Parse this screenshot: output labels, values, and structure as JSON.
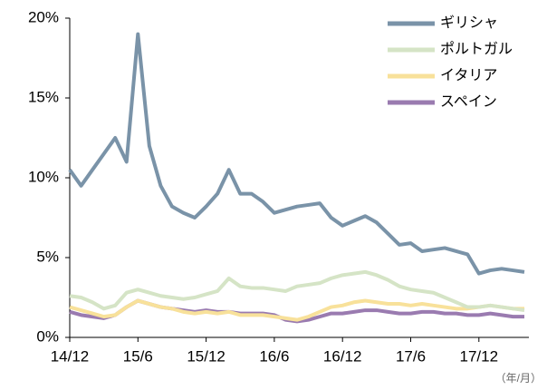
{
  "chart_data": {
    "type": "line",
    "categories": [
      "14/12",
      null,
      null,
      null,
      null,
      null,
      "15/6",
      null,
      null,
      null,
      null,
      null,
      "15/12",
      null,
      null,
      null,
      null,
      null,
      "16/6",
      null,
      null,
      null,
      null,
      null,
      "16/12",
      null,
      null,
      null,
      null,
      null,
      "17/6",
      null,
      null,
      null,
      null,
      null,
      "17/12",
      null,
      null,
      null,
      null
    ],
    "series": [
      {
        "name": "ギリシャ",
        "color": "#7a93a8",
        "values": [
          10.5,
          9.5,
          10.5,
          11.5,
          12.5,
          11.0,
          19.0,
          12.0,
          9.5,
          8.2,
          7.8,
          7.5,
          8.2,
          9.0,
          10.5,
          9.0,
          9.0,
          8.5,
          7.8,
          8.0,
          8.2,
          8.3,
          8.4,
          7.5,
          7.0,
          7.3,
          7.6,
          7.2,
          6.5,
          5.8,
          5.9,
          5.4,
          5.5,
          5.6,
          5.4,
          5.2,
          4.0,
          4.2,
          4.3,
          4.2,
          4.1
        ]
      },
      {
        "name": "ポルトガル",
        "color": "#d5e4c6",
        "values": [
          2.6,
          2.5,
          2.2,
          1.8,
          2.0,
          2.8,
          3.0,
          2.8,
          2.6,
          2.5,
          2.4,
          2.5,
          2.7,
          2.9,
          3.7,
          3.2,
          3.1,
          3.1,
          3.0,
          2.9,
          3.2,
          3.3,
          3.4,
          3.7,
          3.9,
          4.0,
          4.1,
          3.9,
          3.6,
          3.2,
          3.0,
          2.9,
          2.8,
          2.5,
          2.2,
          1.9,
          1.9,
          2.0,
          1.9,
          1.8,
          1.7
        ]
      },
      {
        "name": "イタリア",
        "color": "#f8e19a",
        "values": [
          1.9,
          1.7,
          1.5,
          1.3,
          1.4,
          1.9,
          2.3,
          2.1,
          1.9,
          1.8,
          1.6,
          1.5,
          1.6,
          1.5,
          1.6,
          1.4,
          1.4,
          1.4,
          1.3,
          1.2,
          1.1,
          1.3,
          1.6,
          1.9,
          2.0,
          2.2,
          2.3,
          2.2,
          2.1,
          2.1,
          2.0,
          2.1,
          2.0,
          1.9,
          1.8,
          1.8,
          1.9,
          2.0,
          1.9,
          1.8,
          1.8
        ]
      },
      {
        "name": "スペイン",
        "color": "#9a7bb0",
        "values": [
          1.6,
          1.4,
          1.3,
          1.2,
          1.4,
          1.9,
          2.3,
          2.1,
          1.9,
          1.8,
          1.7,
          1.6,
          1.7,
          1.6,
          1.6,
          1.5,
          1.5,
          1.5,
          1.4,
          1.1,
          1.0,
          1.1,
          1.3,
          1.5,
          1.5,
          1.6,
          1.7,
          1.7,
          1.6,
          1.5,
          1.5,
          1.6,
          1.6,
          1.5,
          1.5,
          1.4,
          1.4,
          1.5,
          1.4,
          1.3,
          1.3
        ]
      }
    ],
    "ylim": [
      0,
      20
    ],
    "yticks": [
      {
        "value": 0,
        "label": "0%"
      },
      {
        "value": 5,
        "label": "5%"
      },
      {
        "value": 10,
        "label": "10%"
      },
      {
        "value": 15,
        "label": "15%"
      },
      {
        "value": 20,
        "label": "20%"
      }
    ],
    "x_note": "（年/月）",
    "legend": "upper right",
    "grid": false
  }
}
